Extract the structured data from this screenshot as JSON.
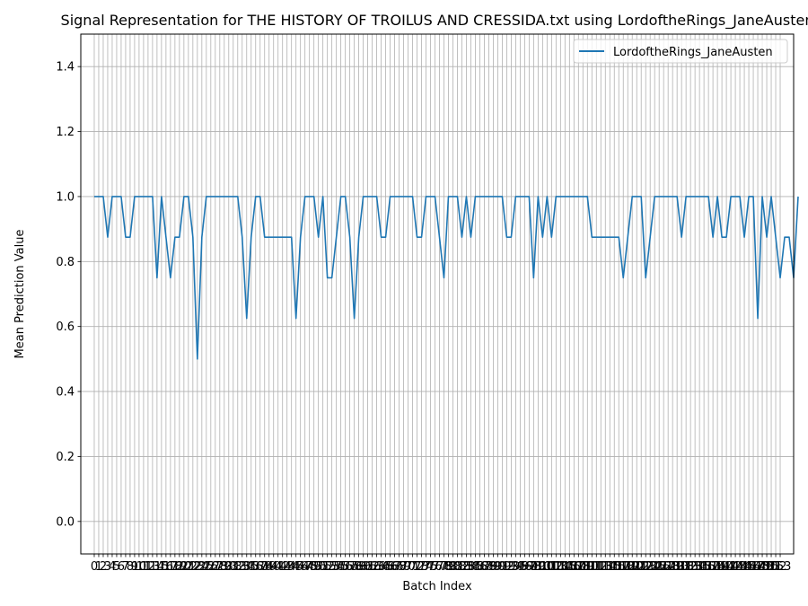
{
  "chart_data": {
    "type": "line",
    "title": "Signal Representation for THE HISTORY OF TROILUS AND CRESSIDA.txt using LordoftheRings_JaneAusten",
    "xlabel": "Batch Index",
    "ylabel": "Mean Prediction Value",
    "ylim": [
      -0.1,
      1.5
    ],
    "xlim": [
      -3.0,
      156.0
    ],
    "y_ticks": [
      0.0,
      0.2,
      0.4,
      0.6,
      0.8,
      1.0,
      1.2,
      1.4
    ],
    "y_tick_labels": [
      "0.0",
      "0.2",
      "0.4",
      "0.6",
      "0.8",
      "1.0",
      "1.2",
      "1.4"
    ],
    "x_ticks_range": [
      0,
      153
    ],
    "grid": true,
    "legend_position": "top-right",
    "series": [
      {
        "name": "LordoftheRings_JaneAusten",
        "color": "#1f77b4",
        "x_start": 0,
        "values": [
          1.0,
          1.0,
          1.0,
          0.875,
          1.0,
          1.0,
          1.0,
          0.875,
          0.875,
          1.0,
          1.0,
          1.0,
          1.0,
          1.0,
          0.75,
          1.0,
          0.875,
          0.75,
          0.875,
          0.875,
          1.0,
          1.0,
          0.875,
          0.5,
          0.875,
          1.0,
          1.0,
          1.0,
          1.0,
          1.0,
          1.0,
          1.0,
          1.0,
          0.875,
          0.625,
          0.875,
          1.0,
          1.0,
          0.875,
          0.875,
          0.875,
          0.875,
          0.875,
          0.875,
          0.875,
          0.625,
          0.875,
          1.0,
          1.0,
          1.0,
          0.875,
          1.0,
          0.75,
          0.75,
          0.875,
          1.0,
          1.0,
          0.875,
          0.625,
          0.875,
          1.0,
          1.0,
          1.0,
          1.0,
          0.875,
          0.875,
          1.0,
          1.0,
          1.0,
          1.0,
          1.0,
          1.0,
          0.875,
          0.875,
          1.0,
          1.0,
          1.0,
          0.875,
          0.75,
          1.0,
          1.0,
          1.0,
          0.875,
          1.0,
          0.875,
          1.0,
          1.0,
          1.0,
          1.0,
          1.0,
          1.0,
          1.0,
          0.875,
          0.875,
          1.0,
          1.0,
          1.0,
          1.0,
          0.75,
          1.0,
          0.875,
          1.0,
          0.875,
          1.0,
          1.0,
          1.0,
          1.0,
          1.0,
          1.0,
          1.0,
          1.0,
          0.875,
          0.875,
          0.875,
          0.875,
          0.875,
          0.875,
          0.875,
          0.75,
          0.875,
          1.0,
          1.0,
          1.0,
          0.75,
          0.875,
          1.0,
          1.0,
          1.0,
          1.0,
          1.0,
          1.0,
          0.875,
          1.0,
          1.0,
          1.0,
          1.0,
          1.0,
          1.0,
          0.875,
          1.0,
          0.875,
          0.875,
          1.0,
          1.0,
          1.0,
          0.875,
          1.0,
          1.0,
          0.625,
          1.0,
          0.875,
          1.0,
          0.875,
          0.75,
          0.875,
          0.875,
          0.75,
          1.0
        ]
      }
    ]
  }
}
